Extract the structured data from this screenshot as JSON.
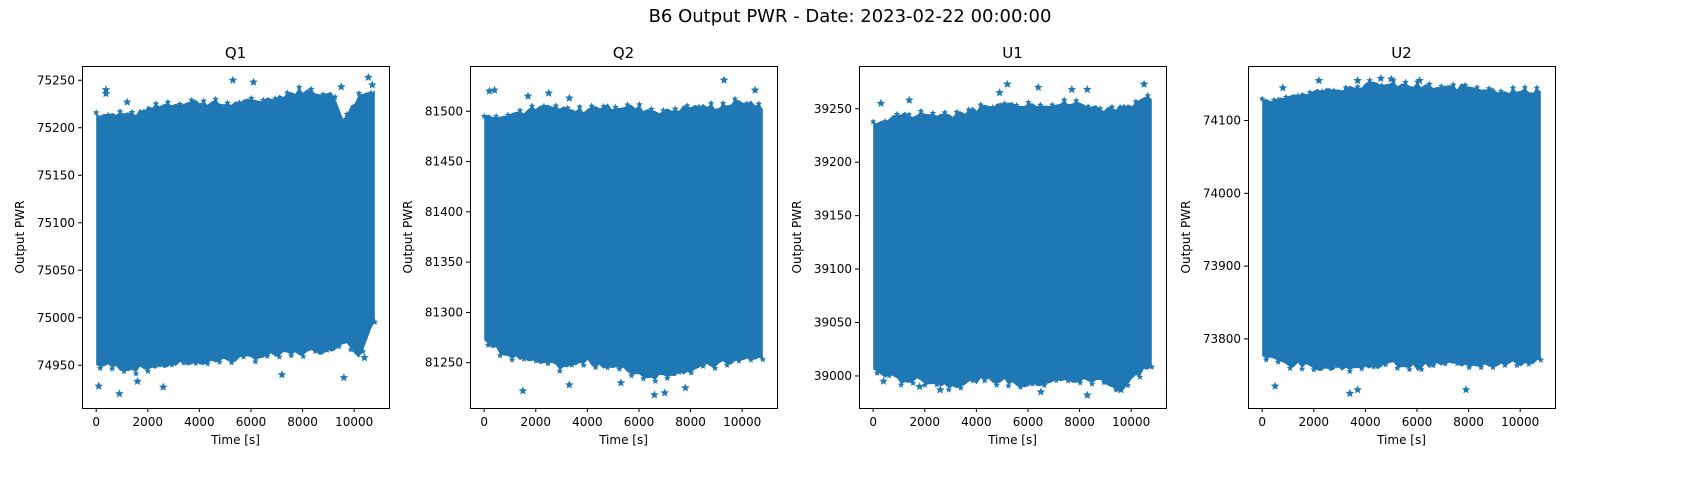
{
  "figure": {
    "title": "B6 Output PWR - Date: 2023-02-22 00:00:00"
  },
  "style": {
    "marker_color": "#1f77b4",
    "marker": "star-icon"
  },
  "chart_data": [
    {
      "type": "scatter",
      "title": "Q1",
      "xlabel": "Time [s]",
      "ylabel": "Output PWR",
      "xlim": [
        -550,
        11350
      ],
      "ylim": [
        74905,
        75265
      ],
      "xticks": [
        0,
        2000,
        4000,
        6000,
        8000,
        10000
      ],
      "yticks": [
        74950,
        75000,
        75050,
        75100,
        75150,
        75200,
        75250
      ],
      "band_lower": [
        [
          0,
          74950
        ],
        [
          1500,
          74945
        ],
        [
          3000,
          74950
        ],
        [
          5000,
          74955
        ],
        [
          7000,
          74960
        ],
        [
          9000,
          74965
        ],
        [
          9700,
          74975
        ],
        [
          10200,
          74960
        ],
        [
          10800,
          74995
        ]
      ],
      "band_upper": [
        [
          0,
          75215
        ],
        [
          1500,
          75215
        ],
        [
          2500,
          75225
        ],
        [
          4000,
          75228
        ],
        [
          5000,
          75225
        ],
        [
          6500,
          75230
        ],
        [
          8000,
          75240
        ],
        [
          9200,
          75235
        ],
        [
          9600,
          75210
        ],
        [
          10200,
          75235
        ],
        [
          10800,
          75240
        ]
      ],
      "outliers": [
        [
          380,
          75240
        ],
        [
          380,
          75236
        ],
        [
          1200,
          75227
        ],
        [
          5300,
          75250
        ],
        [
          6100,
          75248
        ],
        [
          9500,
          75243
        ],
        [
          10550,
          75253
        ],
        [
          10700,
          75245
        ],
        [
          100,
          74928
        ],
        [
          900,
          74920
        ],
        [
          1600,
          74933
        ],
        [
          2600,
          74927
        ],
        [
          7200,
          74940
        ],
        [
          9600,
          74937
        ],
        [
          10400,
          74958
        ]
      ],
      "grid": false,
      "legend": null
    },
    {
      "type": "scatter",
      "title": "Q2",
      "xlabel": "Time [s]",
      "ylabel": "Output PWR",
      "xlim": [
        -550,
        11350
      ],
      "ylim": [
        81205,
        81545
      ],
      "xticks": [
        0,
        2000,
        4000,
        6000,
        8000,
        10000
      ],
      "yticks": [
        81250,
        81300,
        81350,
        81400,
        81450,
        81500
      ],
      "band_lower": [
        [
          0,
          81270
        ],
        [
          1000,
          81255
        ],
        [
          2000,
          81250
        ],
        [
          3000,
          81245
        ],
        [
          4000,
          81250
        ],
        [
          5000,
          81245
        ],
        [
          6500,
          81235
        ],
        [
          7500,
          81240
        ],
        [
          8500,
          81245
        ],
        [
          9500,
          81250
        ],
        [
          10800,
          81255
        ]
      ],
      "band_upper": [
        [
          0,
          81495
        ],
        [
          1500,
          81500
        ],
        [
          2500,
          81505
        ],
        [
          3500,
          81500
        ],
        [
          4500,
          81505
        ],
        [
          5500,
          81505
        ],
        [
          7000,
          81500
        ],
        [
          8000,
          81505
        ],
        [
          9000,
          81505
        ],
        [
          10000,
          81510
        ],
        [
          10800,
          81505
        ]
      ],
      "outliers": [
        [
          200,
          81520
        ],
        [
          400,
          81521
        ],
        [
          1700,
          81515
        ],
        [
          2500,
          81518
        ],
        [
          3300,
          81513
        ],
        [
          9300,
          81531
        ],
        [
          10500,
          81521
        ],
        [
          1500,
          81222
        ],
        [
          3300,
          81228
        ],
        [
          5300,
          81230
        ],
        [
          6600,
          81218
        ],
        [
          7000,
          81220
        ],
        [
          7800,
          81225
        ]
      ],
      "grid": false,
      "legend": null
    },
    {
      "type": "scatter",
      "title": "U1",
      "xlabel": "Time [s]",
      "ylabel": "Output PWR",
      "xlim": [
        -550,
        11350
      ],
      "ylim": [
        38970,
        39290
      ],
      "xticks": [
        0,
        2000,
        4000,
        6000,
        8000,
        10000
      ],
      "yticks": [
        39000,
        39050,
        39100,
        39150,
        39200,
        39250
      ],
      "band_lower": [
        [
          0,
          39005
        ],
        [
          1000,
          38995
        ],
        [
          2000,
          38995
        ],
        [
          3000,
          38990
        ],
        [
          4000,
          38995
        ],
        [
          5000,
          38995
        ],
        [
          6000,
          38990
        ],
        [
          7000,
          38995
        ],
        [
          8000,
          38995
        ],
        [
          9000,
          38995
        ],
        [
          9600,
          38985
        ],
        [
          10200,
          39000
        ],
        [
          10800,
          39010
        ]
      ],
      "band_upper": [
        [
          0,
          39235
        ],
        [
          1000,
          39245
        ],
        [
          2000,
          39245
        ],
        [
          3000,
          39245
        ],
        [
          4000,
          39250
        ],
        [
          5000,
          39255
        ],
        [
          6000,
          39255
        ],
        [
          7000,
          39255
        ],
        [
          8000,
          39255
        ],
        [
          9000,
          39250
        ],
        [
          10000,
          39255
        ],
        [
          10800,
          39260
        ]
      ],
      "outliers": [
        [
          300,
          39255
        ],
        [
          1400,
          39258
        ],
        [
          4900,
          39265
        ],
        [
          5200,
          39273
        ],
        [
          6400,
          39270
        ],
        [
          7700,
          39268
        ],
        [
          8300,
          39268
        ],
        [
          10500,
          39273
        ],
        [
          400,
          38995
        ],
        [
          1800,
          38990
        ],
        [
          2600,
          38987
        ],
        [
          6500,
          38985
        ],
        [
          8300,
          38982
        ],
        [
          9600,
          38987
        ]
      ],
      "grid": false,
      "legend": null
    },
    {
      "type": "scatter",
      "title": "U2",
      "xlabel": "Time [s]",
      "ylabel": "Output PWR",
      "xlim": [
        -550,
        11350
      ],
      "ylim": [
        73705,
        74175
      ],
      "xticks": [
        0,
        2000,
        4000,
        6000,
        8000,
        10000
      ],
      "yticks": [
        73800,
        73900,
        74000,
        74100
      ],
      "band_lower": [
        [
          0,
          73775
        ],
        [
          1000,
          73765
        ],
        [
          2000,
          73760
        ],
        [
          3000,
          73760
        ],
        [
          4000,
          73760
        ],
        [
          5000,
          73765
        ],
        [
          6000,
          73760
        ],
        [
          7000,
          73765
        ],
        [
          8000,
          73765
        ],
        [
          9000,
          73765
        ],
        [
          10000,
          73765
        ],
        [
          10800,
          73770
        ]
      ],
      "band_upper": [
        [
          0,
          74125
        ],
        [
          1000,
          74135
        ],
        [
          2000,
          74140
        ],
        [
          3000,
          74145
        ],
        [
          4000,
          74150
        ],
        [
          5000,
          74150
        ],
        [
          6000,
          74148
        ],
        [
          7000,
          74145
        ],
        [
          8000,
          74148
        ],
        [
          9000,
          74143
        ],
        [
          10000,
          74140
        ],
        [
          10800,
          74143
        ]
      ],
      "outliers": [
        [
          800,
          74145
        ],
        [
          2200,
          74155
        ],
        [
          3700,
          74155
        ],
        [
          4600,
          74158
        ],
        [
          5000,
          74157
        ],
        [
          6100,
          74155
        ],
        [
          3400,
          73725
        ],
        [
          3700,
          73730
        ],
        [
          500,
          73735
        ],
        [
          7900,
          73730
        ]
      ],
      "grid": false,
      "legend": null
    }
  ]
}
